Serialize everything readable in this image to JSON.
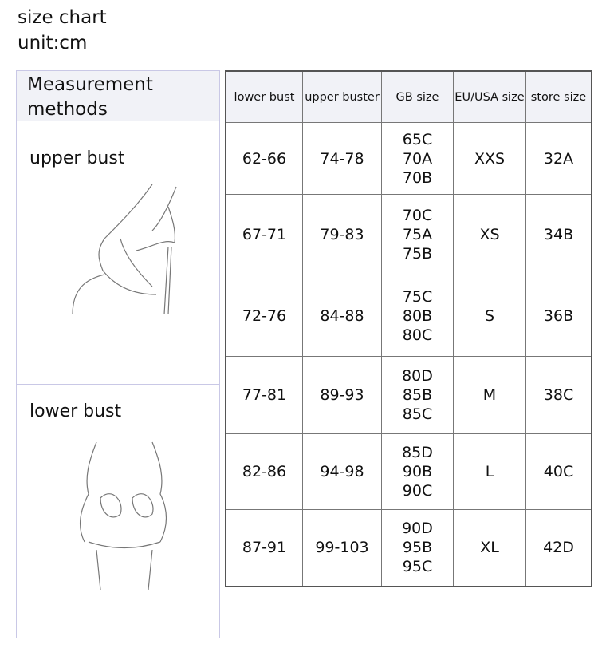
{
  "title": "size chart",
  "unit": "unit:cm",
  "methods": {
    "heading": "Measurement methods",
    "upper": "upper bust",
    "lower": "lower bust"
  },
  "table": {
    "headers": [
      "lower bust",
      "upper buster",
      "GB size",
      "EU/USA size",
      "store size"
    ],
    "rows": [
      {
        "lower": "62-66",
        "upper": "74-78",
        "gb": [
          "65C",
          "70A",
          "70B"
        ],
        "eu": "XXS",
        "store": "32A"
      },
      {
        "lower": "67-71",
        "upper": "79-83",
        "gb": [
          "70C",
          "75A",
          "75B"
        ],
        "eu": "XS",
        "store": "34B"
      },
      {
        "lower": "72-76",
        "upper": "84-88",
        "gb": [
          "75C",
          "80B",
          "80C"
        ],
        "eu": "S",
        "store": "36B"
      },
      {
        "lower": "77-81",
        "upper": "89-93",
        "gb": [
          "80D",
          "85B",
          "85C"
        ],
        "eu": "M",
        "store": "38C"
      },
      {
        "lower": "82-86",
        "upper": "94-98",
        "gb": [
          "85D",
          "90B",
          "90C"
        ],
        "eu": "L",
        "store": "40C"
      },
      {
        "lower": "87-91",
        "upper": "99-103",
        "gb": [
          "90D",
          "95B",
          "95C"
        ],
        "eu": "XL",
        "store": "42D"
      }
    ]
  }
}
